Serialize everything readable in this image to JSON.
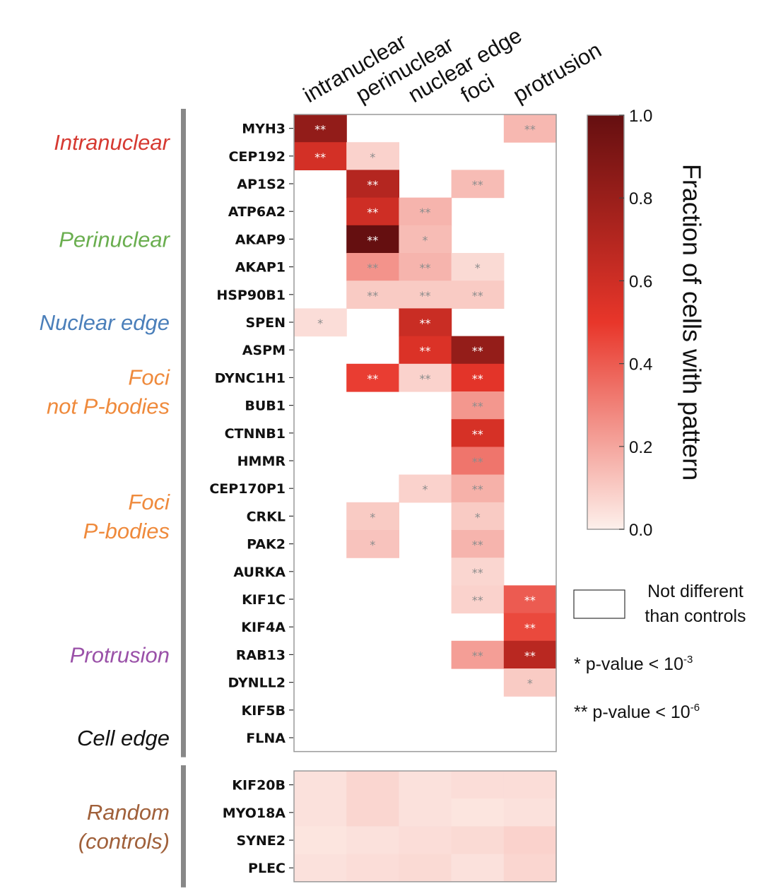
{
  "chart_data": {
    "type": "heatmap",
    "columns": [
      "intranuclear",
      "perinuclear",
      "nuclear edge",
      "foci",
      "protrusion"
    ],
    "rows": [
      "MYH3",
      "CEP192",
      "AP1S2",
      "ATP6A2",
      "AKAP9",
      "AKAP1",
      "HSP90B1",
      "SPEN",
      "ASPM",
      "DYNC1H1",
      "BUB1",
      "CTNNB1",
      "HMMR",
      "CEP170P1",
      "CRKL",
      "PAK2",
      "AURKA",
      "KIF1C",
      "KIF4A",
      "RAB13",
      "DYNLL2",
      "KIF5B",
      "FLNA",
      "KIF20B",
      "MYO18A",
      "SYNE2",
      "PLEC"
    ],
    "groups": [
      {
        "label": "Intranuclear",
        "lines": [
          "Intranuclear"
        ],
        "color": "#d63a32",
        "genes": [
          "MYH3",
          "CEP192"
        ]
      },
      {
        "label": "Perinuclear",
        "lines": [
          "Perinuclear"
        ],
        "color": "#6aae4f",
        "genes": [
          "AP1S2",
          "ATP6A2",
          "AKAP9",
          "AKAP1",
          "HSP90B1"
        ]
      },
      {
        "label": "Nuclear edge",
        "lines": [
          "Nuclear edge"
        ],
        "color": "#4b7fba",
        "genes": [
          "SPEN"
        ]
      },
      {
        "label": "Foci not P-bodies",
        "lines": [
          "Foci",
          "not P-bodies"
        ],
        "color": "#ef8a3c",
        "genes": [
          "ASPM",
          "DYNC1H1",
          "BUB1",
          "CTNNB1"
        ]
      },
      {
        "label": "Foci P-bodies",
        "lines": [
          "Foci",
          "P-bodies"
        ],
        "color": "#ef8a3c",
        "genes": [
          "HMMR",
          "CEP170P1",
          "CRKL",
          "PAK2",
          "AURKA"
        ]
      },
      {
        "label": "Protrusion",
        "lines": [
          "Protrusion"
        ],
        "color": "#9a51a8",
        "genes": [
          "KIF1C",
          "KIF4A",
          "RAB13",
          "DYNLL2",
          "KIF5B"
        ]
      },
      {
        "label": "Cell edge",
        "lines": [
          "Cell edge"
        ],
        "color": "#111111",
        "genes": [
          "FLNA"
        ]
      },
      {
        "label": "Random (controls)",
        "lines": [
          "Random",
          "(controls)"
        ],
        "color": "#a0603a",
        "genes": [
          "KIF20B",
          "MYO18A",
          "SYNE2",
          "PLEC"
        ]
      }
    ],
    "values": [
      [
        0.83,
        null,
        null,
        null,
        0.15
      ],
      [
        0.58,
        0.08,
        null,
        null,
        null
      ],
      [
        null,
        0.7,
        null,
        0.14,
        null
      ],
      [
        null,
        0.6,
        0.16,
        null,
        null
      ],
      [
        null,
        1.0,
        0.14,
        null,
        null
      ],
      [
        null,
        0.25,
        0.16,
        0.06,
        null
      ],
      [
        null,
        0.1,
        0.1,
        0.1,
        null
      ],
      [
        0.05,
        null,
        0.62,
        null,
        null
      ],
      [
        null,
        null,
        0.55,
        0.82,
        null
      ],
      [
        null,
        0.48,
        0.08,
        0.52,
        null
      ],
      [
        null,
        null,
        null,
        0.24,
        null
      ],
      [
        null,
        null,
        null,
        0.57,
        null
      ],
      [
        null,
        null,
        null,
        0.33,
        null
      ],
      [
        null,
        null,
        0.08,
        0.17,
        null
      ],
      [
        null,
        0.1,
        null,
        0.1,
        null
      ],
      [
        null,
        0.12,
        null,
        0.16,
        null
      ],
      [
        null,
        null,
        null,
        0.07,
        null
      ],
      [
        null,
        null,
        null,
        0.08,
        0.4
      ],
      [
        null,
        null,
        null,
        null,
        0.45
      ],
      [
        null,
        null,
        null,
        0.22,
        0.68
      ],
      [
        null,
        null,
        null,
        null,
        0.1
      ],
      [
        null,
        null,
        null,
        null,
        null
      ],
      [
        null,
        null,
        null,
        null,
        null
      ],
      [
        0.04,
        0.07,
        0.04,
        0.05,
        0.05
      ],
      [
        0.04,
        0.07,
        0.04,
        0.03,
        0.04
      ],
      [
        0.03,
        0.04,
        0.05,
        0.06,
        0.08
      ],
      [
        0.04,
        0.05,
        0.06,
        0.04,
        0.07
      ]
    ],
    "significance": [
      [
        "**",
        "",
        "",
        "",
        "**"
      ],
      [
        "**",
        "*",
        "",
        "",
        ""
      ],
      [
        "",
        "**",
        "",
        "**",
        ""
      ],
      [
        "",
        "**",
        "**",
        "",
        ""
      ],
      [
        "",
        "**",
        "*",
        "",
        ""
      ],
      [
        "",
        "**",
        "**",
        "*",
        ""
      ],
      [
        "",
        "**",
        "**",
        "**",
        ""
      ],
      [
        "*",
        "",
        "**",
        "",
        ""
      ],
      [
        "",
        "",
        "**",
        "**",
        ""
      ],
      [
        "",
        "**",
        "**",
        "**",
        ""
      ],
      [
        "",
        "",
        "",
        "**",
        ""
      ],
      [
        "",
        "",
        "",
        "**",
        ""
      ],
      [
        "",
        "",
        "",
        "**",
        ""
      ],
      [
        "",
        "",
        "*",
        "**",
        ""
      ],
      [
        "",
        "*",
        "",
        "*",
        ""
      ],
      [
        "",
        "*",
        "",
        "**",
        ""
      ],
      [
        "",
        "",
        "",
        "**",
        ""
      ],
      [
        "",
        "",
        "",
        "**",
        "**"
      ],
      [
        "",
        "",
        "",
        "",
        "**"
      ],
      [
        "",
        "",
        "",
        "**",
        "**"
      ],
      [
        "",
        "",
        "",
        "",
        "*"
      ],
      [
        "",
        "",
        "",
        "",
        ""
      ],
      [
        "",
        "",
        "",
        "",
        ""
      ],
      [
        "",
        "",
        "",
        "",
        ""
      ],
      [
        "",
        "",
        "",
        "",
        ""
      ],
      [
        "",
        "",
        "",
        "",
        ""
      ],
      [
        "",
        "",
        "",
        "",
        ""
      ]
    ],
    "colorbar": {
      "title": "Fraction of cells with pattern",
      "ticks": [
        "1.0",
        "0.8",
        "0.6",
        "0.4",
        "0.2",
        "0.0"
      ],
      "range": [
        0,
        1
      ],
      "colors": {
        "low": "#fdf0eb",
        "mid": "#e8362a",
        "high": "#650f10"
      }
    },
    "legend": {
      "not_different": [
        "Not different",
        "than controls"
      ],
      "single_star_symbol": "*",
      "single_star_text": "p-value < 10",
      "single_star_exp": "-3",
      "double_star_symbol": "**",
      "double_star_text": "p-value < 10",
      "double_star_exp": "-6"
    }
  }
}
